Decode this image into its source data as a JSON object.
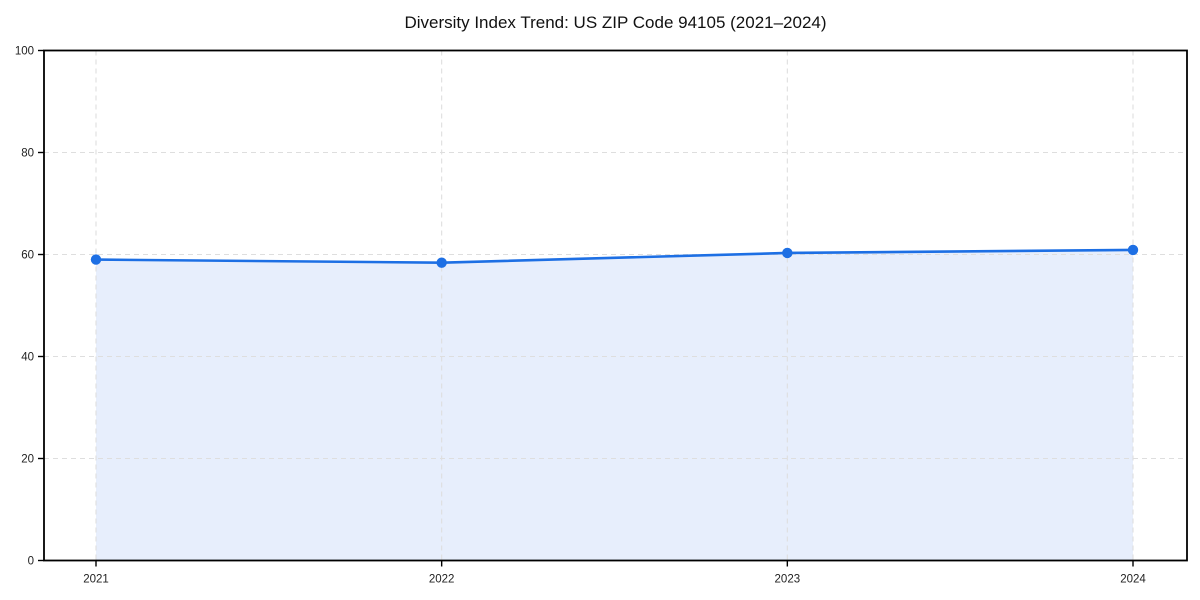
{
  "chart_data": {
    "type": "area",
    "title": "Diversity Index Trend: US ZIP Code 94105 (2021–2024)",
    "x": [
      "2021",
      "2022",
      "2023",
      "2024"
    ],
    "values": [
      59.0,
      58.4,
      60.3,
      60.9
    ],
    "xlabel": "",
    "ylabel": "",
    "ylim": [
      0,
      100
    ],
    "yticks": [
      0,
      20,
      40,
      60,
      80,
      100
    ],
    "grid": "dashed, both axes, drawn at each y tick and each x category",
    "legend": "none",
    "colors": {
      "line": "#1d6fe4",
      "marker": "#1d6fe4",
      "fill": "#e7eefc",
      "grid": "#dedede",
      "spine": "#000000",
      "tick_label": "#222222",
      "title": "#111111",
      "background": "#ffffff"
    }
  }
}
